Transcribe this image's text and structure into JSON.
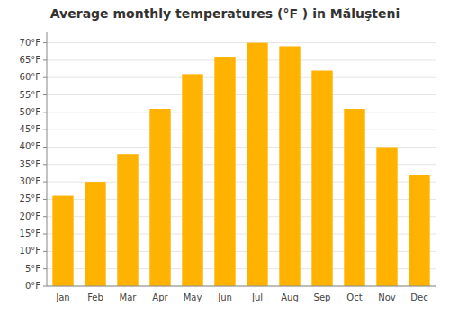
{
  "chart_data": {
    "type": "bar",
    "title": "Average monthly temperatures (°F ) in Măluşteni",
    "categories": [
      "Jan",
      "Feb",
      "Mar",
      "Apr",
      "May",
      "Jun",
      "Jul",
      "Aug",
      "Sep",
      "Oct",
      "Nov",
      "Dec"
    ],
    "values": [
      26,
      30,
      38,
      51,
      61,
      66,
      70,
      69,
      62,
      51,
      40,
      32
    ],
    "color": "#FFB300",
    "ylim": [
      0,
      73
    ],
    "yticks": [
      {
        "value": 0,
        "label": "0°F"
      },
      {
        "value": 5,
        "label": "5°F"
      },
      {
        "value": 10,
        "label": "10°F"
      },
      {
        "value": 15,
        "label": "15°F"
      },
      {
        "value": 20,
        "label": "20°F"
      },
      {
        "value": 25,
        "label": "25°F"
      },
      {
        "value": 30,
        "label": "30°F"
      },
      {
        "value": 35,
        "label": "35°F"
      },
      {
        "value": 40,
        "label": "40°F"
      },
      {
        "value": 45,
        "label": "45°F"
      },
      {
        "value": 50,
        "label": "50°F"
      },
      {
        "value": 55,
        "label": "55°F"
      },
      {
        "value": 60,
        "label": "60°F"
      },
      {
        "value": 65,
        "label": "65°F"
      },
      {
        "value": 70,
        "label": "70°F"
      }
    ],
    "grid": true
  }
}
